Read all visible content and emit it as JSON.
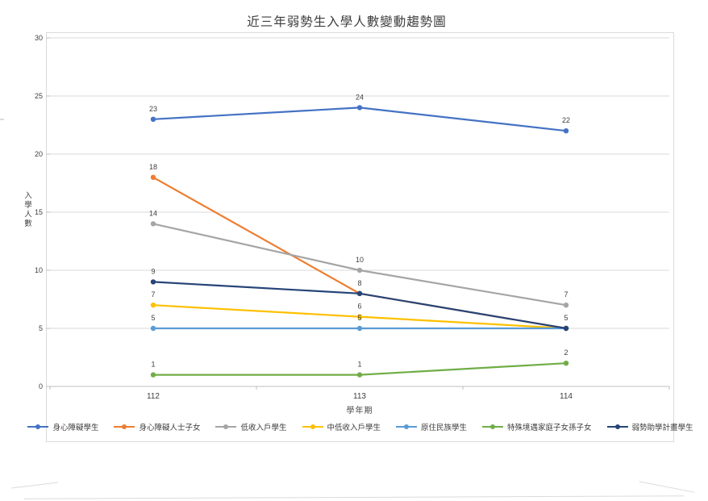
{
  "chart_data": {
    "type": "line",
    "title": "近三年弱勢生入學人數變動趨勢圖",
    "xlabel": "學年期",
    "ylabel": "入學人數",
    "x": [
      "112",
      "113",
      "114"
    ],
    "ylim": [
      0,
      30
    ],
    "yticks": [
      0,
      5,
      10,
      15,
      20,
      25,
      30
    ],
    "grid": true,
    "legend_position": "bottom",
    "marker": "circle",
    "colors": {
      "gridline": "#d9d9d9",
      "axis": "#bfbfbf",
      "text": "#3f3f3f"
    },
    "series": [
      {
        "name": "身心障礙學生",
        "color": "#4472C4",
        "values": [
          23,
          24,
          22
        ]
      },
      {
        "name": "身心障礙人士子女",
        "color": "#ED7D31",
        "values": [
          18,
          8,
          5
        ]
      },
      {
        "name": "低收入戶學生",
        "color": "#A5A5A5",
        "values": [
          14,
          10,
          7
        ]
      },
      {
        "name": "中低收入戶學生",
        "color": "#FFC000",
        "values": [
          7,
          6,
          5
        ]
      },
      {
        "name": "原住民族學生",
        "color": "#5B9BD5",
        "values": [
          5,
          5,
          5
        ]
      },
      {
        "name": "特殊境遇家庭子女孫子女",
        "color": "#70AD47",
        "values": [
          1,
          1,
          2
        ]
      },
      {
        "name": "弱勢助學計畫學生",
        "color": "#264478",
        "values": [
          9,
          8,
          5
        ]
      }
    ]
  }
}
